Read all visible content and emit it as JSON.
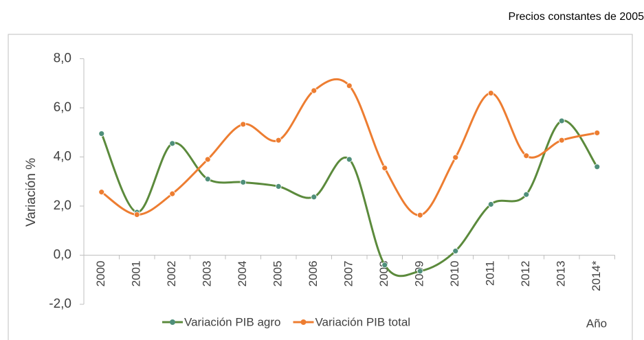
{
  "chart_data": {
    "type": "line",
    "subtitle": "Precios constantes de 2005",
    "y_label": "Variación %",
    "x_label": "Año",
    "categories": [
      "2000",
      "2001",
      "2002",
      "2003",
      "2004",
      "2005",
      "2006",
      "2007",
      "2008",
      "2009",
      "2010",
      "2011",
      "2012",
      "2013",
      "2014*"
    ],
    "series": [
      {
        "name": "Variación PIB agro",
        "color": "#5b8a3c",
        "marker_color": "#4f8f7a",
        "values": [
          4.95,
          1.75,
          4.55,
          3.1,
          2.97,
          2.8,
          2.37,
          3.9,
          -0.4,
          -0.65,
          0.17,
          2.07,
          2.47,
          5.47,
          3.6
        ]
      },
      {
        "name": "Variación PIB total",
        "color": "#ed7d31",
        "marker_color": "#ed7d31",
        "values": [
          2.57,
          1.65,
          2.5,
          3.9,
          5.33,
          4.68,
          6.7,
          6.9,
          3.55,
          1.63,
          3.98,
          6.6,
          4.05,
          4.68,
          4.98
        ]
      }
    ],
    "ylim": [
      -2,
      8
    ],
    "yticks": [
      {
        "value": -2,
        "label": "-2,0"
      },
      {
        "value": 0,
        "label": "0,0"
      },
      {
        "value": 2,
        "label": "2,0"
      },
      {
        "value": 4,
        "label": "4,0"
      },
      {
        "value": 6,
        "label": "6,0"
      },
      {
        "value": 8,
        "label": "8,0"
      }
    ],
    "legend": "bottom"
  }
}
